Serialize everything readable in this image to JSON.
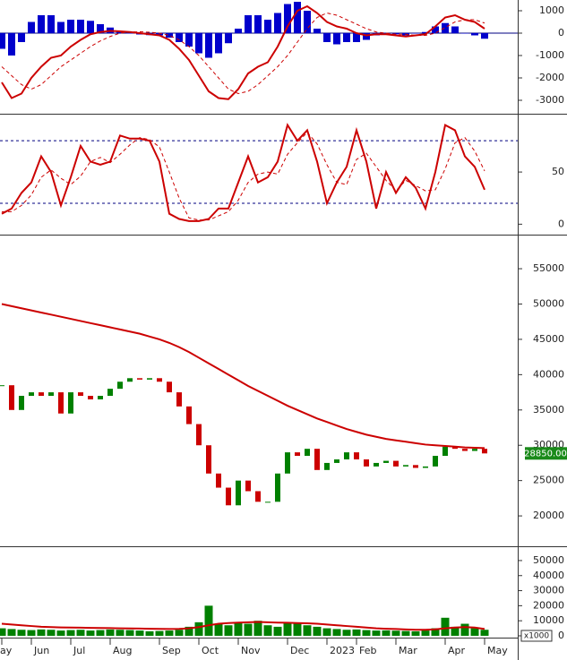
{
  "chart_data": [
    {
      "type": "line",
      "ylim": [
        -3600,
        1480
      ],
      "yticks": [
        1000,
        0,
        -1000,
        -2000,
        -3000
      ],
      "zero_line": true,
      "series": [
        {
          "style": "bar",
          "color": "#0000cc",
          "values": [
            -700,
            -1000,
            -400,
            500,
            800,
            800,
            500,
            600,
            600,
            550,
            400,
            250,
            80,
            0,
            -60,
            -90,
            -100,
            -200,
            -400,
            -600,
            -900,
            -1100,
            -900,
            -450,
            200,
            800,
            800,
            600,
            900,
            1300,
            1400,
            1000,
            200,
            -400,
            -500,
            -400,
            -400,
            -300,
            -100,
            -50,
            -50,
            -100,
            0,
            50,
            300,
            450,
            300,
            0,
            -100,
            -250
          ]
        },
        {
          "style": "dashed",
          "color": "#cc0000",
          "values": [
            -1500,
            -1900,
            -2300,
            -2500,
            -2300,
            -1900,
            -1500,
            -1200,
            -900,
            -600,
            -350,
            -150,
            0,
            50,
            60,
            40,
            0,
            -100,
            -300,
            -600,
            -1000,
            -1500,
            -2000,
            -2500,
            -2700,
            -2600,
            -2300,
            -1900,
            -1500,
            -1000,
            -400,
            200,
            700,
            900,
            800,
            600,
            400,
            200,
            50,
            0,
            -50,
            -50,
            -100,
            -100,
            0,
            250,
            500,
            600,
            600,
            450
          ]
        },
        {
          "style": "line",
          "color": "#cc0000",
          "values": [
            -2200,
            -2900,
            -2700,
            -2000,
            -1500,
            -1100,
            -1000,
            -600,
            -300,
            -50,
            50,
            100,
            80,
            50,
            0,
            -50,
            -100,
            -300,
            -700,
            -1200,
            -1900,
            -2600,
            -2900,
            -2950,
            -2500,
            -1800,
            -1500,
            -1300,
            -600,
            300,
            1000,
            1200,
            900,
            500,
            300,
            200,
            0,
            -100,
            -50,
            -50,
            -100,
            -150,
            -100,
            -50,
            300,
            700,
            800,
            600,
            500,
            200
          ]
        }
      ]
    },
    {
      "type": "line",
      "ylim": [
        -10,
        105
      ],
      "yticks": [
        50,
        0
      ],
      "hlines": [
        80,
        20
      ],
      "series": [
        {
          "style": "dashed",
          "color": "#cc0000",
          "values": [
            12,
            12,
            18,
            28,
            45,
            52,
            44,
            38,
            46,
            60,
            64,
            59,
            67,
            76,
            83,
            81,
            74,
            50,
            25,
            6,
            4,
            4,
            8,
            12,
            23,
            40,
            48,
            50,
            48,
            67,
            78,
            88,
            77,
            57,
            40,
            38,
            62,
            68,
            55,
            42,
            32,
            42,
            37,
            32,
            33,
            53,
            78,
            83,
            70,
            51
          ]
        },
        {
          "style": "line",
          "color": "#cc0000",
          "values": [
            10,
            15,
            30,
            40,
            65,
            50,
            18,
            45,
            75,
            60,
            57,
            60,
            85,
            82,
            82,
            80,
            60,
            10,
            5,
            3,
            3,
            5,
            15,
            15,
            40,
            65,
            40,
            45,
            60,
            95,
            80,
            90,
            60,
            20,
            40,
            55,
            90,
            60,
            15,
            50,
            30,
            45,
            35,
            15,
            50,
            95,
            90,
            65,
            55,
            33
          ]
        }
      ]
    },
    {
      "type": "line",
      "ylim": [
        15700,
        59700
      ],
      "yticks": [
        55000,
        50000,
        45000,
        40000,
        35000,
        30000,
        25000,
        20000
      ],
      "last_price": {
        "value": 28850,
        "label": "28850.00"
      },
      "series": [
        {
          "style": "candle",
          "up_color": "#008000",
          "down_color": "#cc0000",
          "values": [
            38500,
            35000,
            37000,
            37500,
            37000,
            37500,
            34500,
            37500,
            37000,
            36500,
            37000,
            38000,
            39000,
            39500,
            39300,
            39500,
            39000,
            37500,
            35500,
            33000,
            30000,
            26000,
            24000,
            21500,
            25000,
            23500,
            22000,
            22000,
            26000,
            29000,
            28500,
            29500,
            26500,
            27500,
            28000,
            29000,
            28000,
            27000,
            27500,
            27800,
            27000,
            27200,
            26800,
            27000,
            28500,
            29800,
            29500,
            29200,
            29500,
            28850
          ]
        },
        {
          "style": "line",
          "color": "#cc0000",
          "values": [
            50000,
            49700,
            49400,
            49100,
            48800,
            48500,
            48200,
            47900,
            47600,
            47300,
            47000,
            46700,
            46400,
            46100,
            45800,
            45400,
            45000,
            44500,
            43900,
            43200,
            42400,
            41600,
            40800,
            40000,
            39200,
            38400,
            37700,
            37000,
            36300,
            35600,
            35000,
            34400,
            33800,
            33300,
            32800,
            32300,
            31900,
            31500,
            31200,
            30900,
            30700,
            30500,
            30300,
            30100,
            30000,
            29900,
            29800,
            29700,
            29650,
            29600
          ]
        }
      ]
    },
    {
      "type": "bar",
      "ylim": [
        -1200,
        58900
      ],
      "yticks": [
        50000,
        40000,
        30000,
        20000,
        10000,
        0
      ],
      "unit_label": "x1000",
      "categories": [
        "ay",
        null,
        null,
        "Jun",
        null,
        null,
        null,
        "Jul",
        null,
        null,
        null,
        "Aug",
        null,
        null,
        null,
        null,
        "Sep",
        null,
        null,
        null,
        "Oct",
        null,
        null,
        null,
        "Nov",
        null,
        null,
        null,
        null,
        "Dec",
        null,
        null,
        null,
        "2023",
        null,
        null,
        "Feb",
        null,
        null,
        null,
        "Mar",
        null,
        null,
        null,
        null,
        "Apr",
        null,
        null,
        null,
        "May"
      ],
      "series": [
        {
          "style": "bar",
          "color": "#008000",
          "values": [
            5000,
            4500,
            4000,
            3800,
            4200,
            4000,
            3500,
            3800,
            4000,
            3500,
            3800,
            4200,
            4000,
            3800,
            3500,
            3000,
            3200,
            3500,
            4000,
            6000,
            9000,
            20000,
            8000,
            7000,
            9000,
            8000,
            10000,
            7000,
            6000,
            9000,
            8000,
            7000,
            6000,
            5000,
            4500,
            4000,
            4200,
            3800,
            3500,
            3600,
            3400,
            3200,
            3000,
            3500,
            5000,
            12000,
            6000,
            8000,
            5000,
            4000
          ]
        },
        {
          "style": "line",
          "color": "#cc0000",
          "values": [
            8000,
            7500,
            7000,
            6500,
            6000,
            5800,
            5600,
            5500,
            5400,
            5300,
            5200,
            5100,
            5000,
            4900,
            4800,
            4700,
            4600,
            4500,
            4600,
            5000,
            5800,
            7000,
            8000,
            8500,
            8800,
            9000,
            9200,
            9000,
            8800,
            8700,
            8500,
            8300,
            8000,
            7500,
            7000,
            6500,
            6000,
            5500,
            5000,
            4700,
            4500,
            4200,
            4000,
            4000,
            4300,
            5000,
            5500,
            5800,
            5500,
            4500
          ]
        }
      ]
    }
  ]
}
